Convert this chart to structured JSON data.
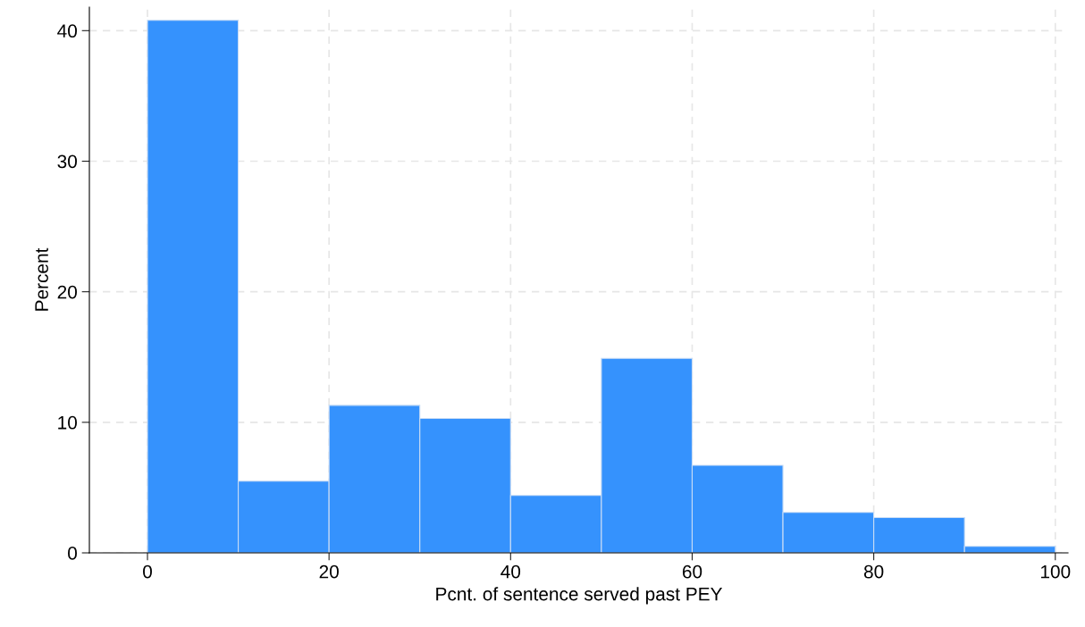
{
  "chart_data": {
    "type": "histogram",
    "xlabel": "Pcnt. of sentence served past PEY",
    "ylabel": "Percent",
    "bins": [
      0,
      10,
      20,
      30,
      40,
      50,
      60,
      70,
      80,
      90,
      100
    ],
    "values": [
      40.8,
      5.5,
      11.3,
      10.3,
      4.4,
      14.9,
      6.7,
      3.1,
      2.7,
      0.5
    ],
    "color": "#3592fd",
    "xlim": [
      -6.4,
      101.4
    ],
    "ylim": [
      0,
      41.8
    ],
    "xticks": [
      0,
      20,
      40,
      60,
      80,
      100
    ],
    "yticks": [
      0,
      10,
      20,
      30,
      40
    ],
    "grid": true
  }
}
